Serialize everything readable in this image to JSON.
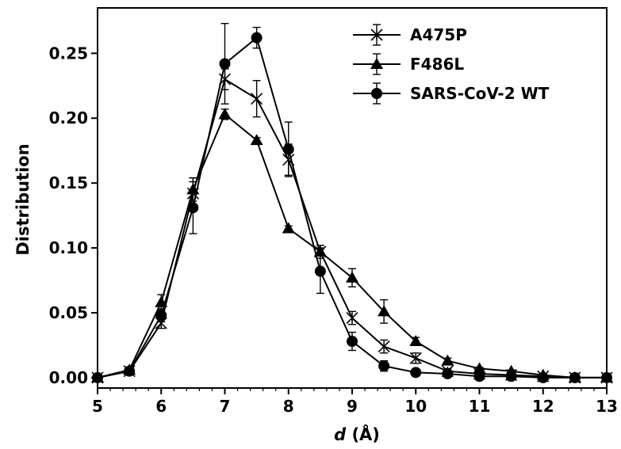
{
  "chart_data": {
    "type": "line",
    "title": "",
    "xlabel": {
      "var": "d",
      "unit": " (Å)"
    },
    "ylabel": "Distribution",
    "xlim": [
      5,
      13
    ],
    "ylim": [
      -0.008,
      0.285
    ],
    "xticks": [
      5,
      6,
      7,
      8,
      9,
      10,
      11,
      12,
      13
    ],
    "yticks": [
      "0.00",
      "0.05",
      "0.10",
      "0.15",
      "0.20",
      "0.25"
    ],
    "grid": false,
    "legend_position": "top-right",
    "series": [
      {
        "name": "A475P",
        "marker": "x-star",
        "color": "#000000",
        "x": [
          5,
          5.5,
          6,
          6.5,
          7,
          7.5,
          8,
          8.5,
          9,
          9.5,
          10,
          10.5,
          11,
          11.5,
          12,
          12.5,
          13
        ],
        "y": [
          0.0,
          0.005,
          0.042,
          0.142,
          0.23,
          0.215,
          0.168,
          0.097,
          0.046,
          0.024,
          0.015,
          0.005,
          0.003,
          0.002,
          0.001,
          0.0,
          0.0
        ],
        "err": [
          0.0,
          0.001,
          0.004,
          0.012,
          0.008,
          0.014,
          0.012,
          0.005,
          0.005,
          0.005,
          0.004,
          0.002,
          0.001,
          0.001,
          0.001,
          0.0,
          0.0
        ]
      },
      {
        "name": "F486L",
        "marker": "triangle",
        "color": "#000000",
        "x": [
          5,
          5.5,
          6,
          6.5,
          7,
          7.5,
          8,
          8.5,
          9,
          9.5,
          10,
          10.5,
          11,
          11.5,
          12,
          12.5,
          13
        ],
        "y": [
          0.0,
          0.006,
          0.058,
          0.145,
          0.203,
          0.183,
          0.115,
          0.097,
          0.077,
          0.051,
          0.028,
          0.013,
          0.007,
          0.005,
          0.002,
          0.0,
          0.0
        ],
        "err": [
          0.0,
          0.001,
          0.006,
          0.009,
          0.004,
          0.002,
          0.002,
          0.003,
          0.007,
          0.009,
          0.003,
          0.002,
          0.001,
          0.001,
          0.001,
          0.0,
          0.0
        ]
      },
      {
        "name": "SARS-CoV-2 WT",
        "marker": "circle",
        "color": "#000000",
        "x": [
          5,
          5.5,
          6,
          6.5,
          7,
          7.5,
          8,
          8.5,
          9,
          9.5,
          10,
          10.5,
          11,
          11.5,
          12,
          12.5,
          13
        ],
        "y": [
          0.0,
          0.005,
          0.048,
          0.131,
          0.242,
          0.262,
          0.176,
          0.082,
          0.028,
          0.009,
          0.004,
          0.003,
          0.001,
          0.001,
          0.0,
          0.0,
          0.0
        ],
        "err": [
          0.0,
          0.001,
          0.005,
          0.02,
          0.031,
          0.008,
          0.021,
          0.017,
          0.007,
          0.004,
          0.001,
          0.001,
          0.0,
          0.0,
          0.0,
          0.0,
          0.0
        ]
      }
    ]
  }
}
